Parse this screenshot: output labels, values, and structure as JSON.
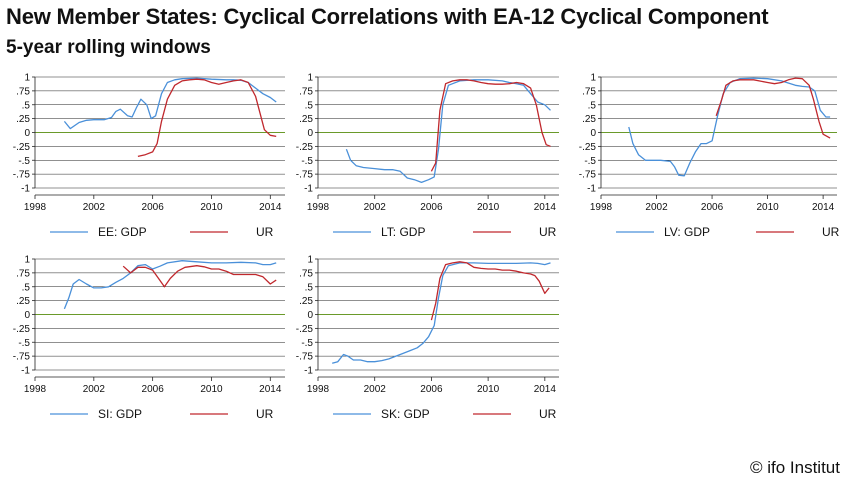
{
  "title": "New Member States: Cyclical Correlations with EA-12 Cyclical Component",
  "subtitle": "5-year rolling windows",
  "credit": "© ifo Institut",
  "colors": {
    "gdp": "#4a90d9",
    "ur": "#c0282d",
    "zero": "#6a9a2a",
    "grid": "#222222"
  },
  "chart_data": [
    {
      "type": "line",
      "xlim": [
        1998,
        2015
      ],
      "ylim": [
        -1,
        1
      ],
      "x_ticks": [
        "1998",
        "2002",
        "2006",
        "2010",
        "2014"
      ],
      "y_ticks": [
        "1",
        ".75",
        ".5",
        ".25",
        "0",
        "-.25",
        "-.5",
        "-.75",
        "-1"
      ],
      "series": [
        {
          "name": "EE: GDP",
          "color": "gdp",
          "x": [
            2000.0,
            2000.4,
            2001.0,
            2001.5,
            2002.0,
            2002.7,
            2003.2,
            2003.5,
            2003.8,
            2004.3,
            2004.6,
            2004.9,
            2005.2,
            2005.6,
            2005.9,
            2006.2,
            2006.6,
            2007.0,
            2007.5,
            2008.0,
            2009.0,
            2010.0,
            2011.0,
            2011.5,
            2012.0,
            2012.5,
            2013.0,
            2013.5,
            2014.0,
            2014.4
          ],
          "y": [
            0.2,
            0.07,
            0.18,
            0.22,
            0.23,
            0.23,
            0.27,
            0.38,
            0.42,
            0.3,
            0.28,
            0.45,
            0.6,
            0.5,
            0.25,
            0.3,
            0.7,
            0.9,
            0.95,
            0.97,
            0.98,
            0.96,
            0.95,
            0.95,
            0.94,
            0.9,
            0.8,
            0.7,
            0.63,
            0.55
          ]
        },
        {
          "name": "UR",
          "color": "ur",
          "x": [
            2005.0,
            2005.5,
            2006.0,
            2006.3,
            2006.6,
            2007.0,
            2007.5,
            2008.0,
            2008.5,
            2009.0,
            2009.5,
            2010.0,
            2010.5,
            2011.0,
            2011.5,
            2012.0,
            2012.5,
            2013.0,
            2013.3,
            2013.6,
            2014.0,
            2014.4
          ],
          "y": [
            -0.43,
            -0.4,
            -0.35,
            -0.2,
            0.2,
            0.6,
            0.85,
            0.93,
            0.95,
            0.96,
            0.95,
            0.9,
            0.87,
            0.9,
            0.93,
            0.95,
            0.9,
            0.65,
            0.35,
            0.05,
            -0.05,
            -0.07
          ]
        }
      ]
    },
    {
      "type": "line",
      "xlim": [
        1998,
        2015
      ],
      "ylim": [
        -1,
        1
      ],
      "x_ticks": [
        "1998",
        "2002",
        "2006",
        "2010",
        "2014"
      ],
      "y_ticks": [
        "1",
        ".75",
        ".5",
        ".25",
        "0",
        "-.25",
        "-.5",
        "-.75",
        "-1"
      ],
      "series": [
        {
          "name": "LT: GDP",
          "color": "gdp",
          "x": [
            2000.0,
            2000.3,
            2000.7,
            2001.2,
            2002.0,
            2002.7,
            2003.3,
            2003.8,
            2004.3,
            2004.8,
            2005.3,
            2005.8,
            2006.2,
            2006.5,
            2006.8,
            2007.2,
            2008.0,
            2009.0,
            2010.0,
            2011.0,
            2011.5,
            2012.0,
            2012.5,
            2013.0,
            2013.5,
            2014.0,
            2014.4
          ],
          "y": [
            -0.3,
            -0.5,
            -0.6,
            -0.63,
            -0.65,
            -0.67,
            -0.67,
            -0.7,
            -0.82,
            -0.85,
            -0.9,
            -0.85,
            -0.8,
            -0.3,
            0.5,
            0.85,
            0.93,
            0.95,
            0.95,
            0.93,
            0.9,
            0.88,
            0.85,
            0.7,
            0.55,
            0.5,
            0.4
          ]
        },
        {
          "name": "UR",
          "color": "ur",
          "x": [
            2006.0,
            2006.3,
            2006.6,
            2007.0,
            2007.5,
            2008.0,
            2008.5,
            2009.0,
            2009.5,
            2010.0,
            2010.5,
            2011.0,
            2011.5,
            2012.0,
            2012.5,
            2013.0,
            2013.4,
            2013.8,
            2014.1,
            2014.4
          ],
          "y": [
            -0.7,
            -0.55,
            0.4,
            0.88,
            0.93,
            0.95,
            0.95,
            0.93,
            0.9,
            0.88,
            0.87,
            0.87,
            0.88,
            0.9,
            0.88,
            0.8,
            0.5,
            0.0,
            -0.22,
            -0.25
          ]
        }
      ]
    },
    {
      "type": "line",
      "xlim": [
        1998,
        2015
      ],
      "ylim": [
        -1,
        1
      ],
      "x_ticks": [
        "1998",
        "2002",
        "2006",
        "2010",
        "2014"
      ],
      "y_ticks": [
        "1",
        ".75",
        ".5",
        ".25",
        "0",
        "-.25",
        "-.5",
        "-.75",
        "-1"
      ],
      "series": [
        {
          "name": "LV: GDP",
          "color": "gdp",
          "x": [
            2000.0,
            2000.3,
            2000.7,
            2001.2,
            2001.7,
            2002.3,
            2003.0,
            2003.3,
            2003.6,
            2004.0,
            2004.4,
            2004.8,
            2005.2,
            2005.6,
            2006.0,
            2006.4,
            2006.8,
            2007.3,
            2008.0,
            2009.0,
            2010.0,
            2011.0,
            2012.0,
            2012.5,
            2013.0,
            2013.4,
            2013.8,
            2014.2,
            2014.5
          ],
          "y": [
            0.1,
            -0.2,
            -0.4,
            -0.5,
            -0.5,
            -0.5,
            -0.52,
            -0.62,
            -0.77,
            -0.78,
            -0.55,
            -0.35,
            -0.2,
            -0.2,
            -0.15,
            0.3,
            0.7,
            0.9,
            0.97,
            0.98,
            0.97,
            0.93,
            0.85,
            0.83,
            0.82,
            0.75,
            0.4,
            0.28,
            0.28
          ]
        },
        {
          "name": "UR",
          "color": "ur",
          "x": [
            2006.3,
            2006.7,
            2007.0,
            2007.5,
            2008.0,
            2009.0,
            2010.0,
            2010.5,
            2011.0,
            2011.5,
            2012.0,
            2012.5,
            2013.0,
            2013.3,
            2013.7,
            2014.0,
            2014.5
          ],
          "y": [
            0.3,
            0.6,
            0.85,
            0.93,
            0.95,
            0.95,
            0.9,
            0.88,
            0.9,
            0.95,
            0.98,
            0.97,
            0.85,
            0.6,
            0.2,
            -0.03,
            -0.1
          ]
        }
      ]
    },
    {
      "type": "line",
      "xlim": [
        1998,
        2015
      ],
      "ylim": [
        -1,
        1
      ],
      "x_ticks": [
        "1998",
        "2002",
        "2006",
        "2010",
        "2014"
      ],
      "y_ticks": [
        "1",
        ".75",
        ".5",
        ".25",
        "0",
        "-.25",
        "-.5",
        "-.75",
        "-1"
      ],
      "series": [
        {
          "name": "SI: GDP",
          "color": "gdp",
          "x": [
            2000.0,
            2000.3,
            2000.6,
            2001.0,
            2001.5,
            2002.0,
            2002.5,
            2003.0,
            2003.5,
            2004.0,
            2004.5,
            2005.0,
            2005.5,
            2006.0,
            2006.5,
            2007.0,
            2008.0,
            2009.0,
            2010.0,
            2011.0,
            2012.0,
            2013.0,
            2013.5,
            2014.0,
            2014.4
          ],
          "y": [
            0.1,
            0.3,
            0.55,
            0.63,
            0.55,
            0.48,
            0.48,
            0.5,
            0.58,
            0.65,
            0.75,
            0.88,
            0.9,
            0.82,
            0.87,
            0.93,
            0.97,
            0.95,
            0.93,
            0.93,
            0.94,
            0.93,
            0.9,
            0.9,
            0.93
          ]
        },
        {
          "name": "UR",
          "color": "ur",
          "x": [
            2004.0,
            2004.5,
            2005.0,
            2005.5,
            2006.0,
            2006.4,
            2006.8,
            2007.2,
            2007.7,
            2008.2,
            2009.0,
            2009.5,
            2010.0,
            2010.5,
            2011.0,
            2011.5,
            2012.0,
            2012.5,
            2013.0,
            2013.5,
            2014.0,
            2014.4
          ],
          "y": [
            0.87,
            0.75,
            0.85,
            0.85,
            0.8,
            0.65,
            0.5,
            0.65,
            0.78,
            0.85,
            0.88,
            0.86,
            0.82,
            0.82,
            0.78,
            0.72,
            0.72,
            0.72,
            0.72,
            0.68,
            0.55,
            0.62
          ]
        }
      ]
    },
    {
      "type": "line",
      "xlim": [
        1998,
        2015
      ],
      "ylim": [
        -1,
        1
      ],
      "x_ticks": [
        "1998",
        "2002",
        "2006",
        "2010",
        "2014"
      ],
      "y_ticks": [
        "1",
        ".75",
        ".5",
        ".25",
        "0",
        "-.25",
        "-.5",
        "-.75",
        "-1"
      ],
      "series": [
        {
          "name": "SK: GDP",
          "color": "gdp",
          "x": [
            1999.0,
            1999.4,
            1999.8,
            2000.1,
            2000.5,
            2001.0,
            2001.5,
            2002.0,
            2002.5,
            2003.0,
            2003.5,
            2004.0,
            2004.5,
            2005.0,
            2005.4,
            2005.8,
            2006.2,
            2006.5,
            2006.8,
            2007.2,
            2008.0,
            2009.0,
            2010.0,
            2011.0,
            2012.0,
            2013.0,
            2013.5,
            2014.0,
            2014.4
          ],
          "y": [
            -0.88,
            -0.85,
            -0.72,
            -0.75,
            -0.82,
            -0.82,
            -0.85,
            -0.85,
            -0.83,
            -0.8,
            -0.75,
            -0.7,
            -0.65,
            -0.6,
            -0.52,
            -0.4,
            -0.2,
            0.3,
            0.7,
            0.88,
            0.93,
            0.93,
            0.92,
            0.92,
            0.92,
            0.93,
            0.92,
            0.9,
            0.93
          ]
        },
        {
          "name": "UR",
          "color": "ur",
          "x": [
            2006.0,
            2006.3,
            2006.6,
            2007.0,
            2007.5,
            2008.0,
            2008.5,
            2009.0,
            2009.5,
            2010.0,
            2010.5,
            2011.0,
            2011.5,
            2012.0,
            2012.5,
            2013.0,
            2013.3,
            2013.6,
            2014.0,
            2014.3
          ],
          "y": [
            -0.1,
            0.2,
            0.65,
            0.9,
            0.93,
            0.95,
            0.93,
            0.85,
            0.83,
            0.82,
            0.82,
            0.8,
            0.8,
            0.78,
            0.75,
            0.73,
            0.7,
            0.6,
            0.38,
            0.48
          ]
        }
      ]
    }
  ]
}
